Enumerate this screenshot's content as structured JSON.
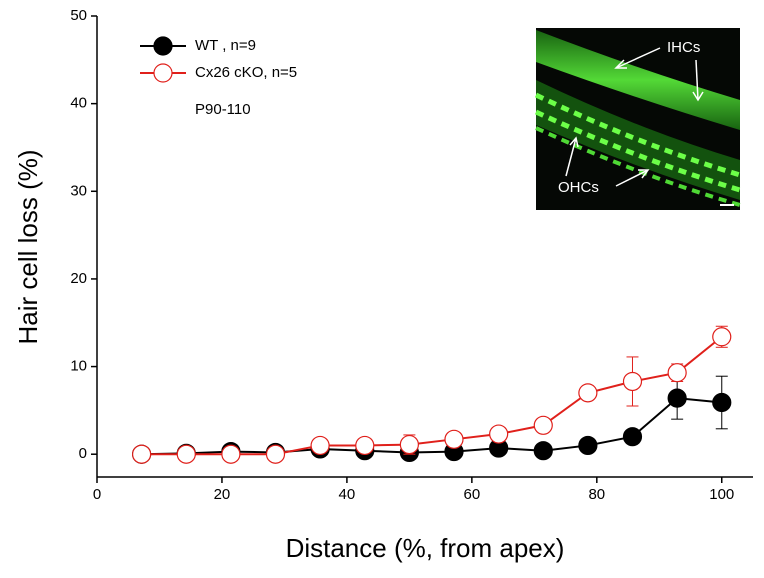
{
  "chart_data": {
    "type": "line",
    "xlabel": "Distance (%, from apex)",
    "ylabel": "Hair cell loss (%)",
    "annotation": "P90-110",
    "inset_labels": [
      "IHCs",
      "OHCs"
    ],
    "x": [
      7.14,
      14.29,
      21.43,
      28.57,
      35.71,
      42.86,
      50,
      57.14,
      64.29,
      71.43,
      78.57,
      85.71,
      92.86,
      100
    ],
    "series": [
      {
        "name": "WT , n=9",
        "color": "#000000",
        "filled": true,
        "values": [
          0,
          0.1,
          0.3,
          0.2,
          0.6,
          0.4,
          0.2,
          0.3,
          0.7,
          0.4,
          1.0,
          2.0,
          6.4,
          5.9
        ],
        "errors": [
          0,
          0.1,
          0.2,
          0.2,
          0.3,
          0.2,
          0.2,
          0.2,
          0.3,
          0.2,
          0.3,
          0.4,
          2.4,
          3.0
        ]
      },
      {
        "name": "Cx26 cKO, n=5",
        "color": "#e0201b",
        "filled": false,
        "values": [
          0,
          0,
          0,
          0,
          1.0,
          1.0,
          1.1,
          1.7,
          2.3,
          3.3,
          7.0,
          8.3,
          9.3,
          13.4
        ],
        "errors": [
          0,
          0,
          0.1,
          0.1,
          0.4,
          0.6,
          1.1,
          0.5,
          0.4,
          0.5,
          0.8,
          2.8,
          1.0,
          1.2
        ]
      }
    ],
    "xlim": [
      0,
      105
    ],
    "xticks": [
      0,
      20,
      40,
      60,
      80,
      100
    ],
    "ylim": [
      -2.6,
      50
    ],
    "yticks": [
      0,
      10,
      20,
      30,
      40,
      50
    ]
  }
}
